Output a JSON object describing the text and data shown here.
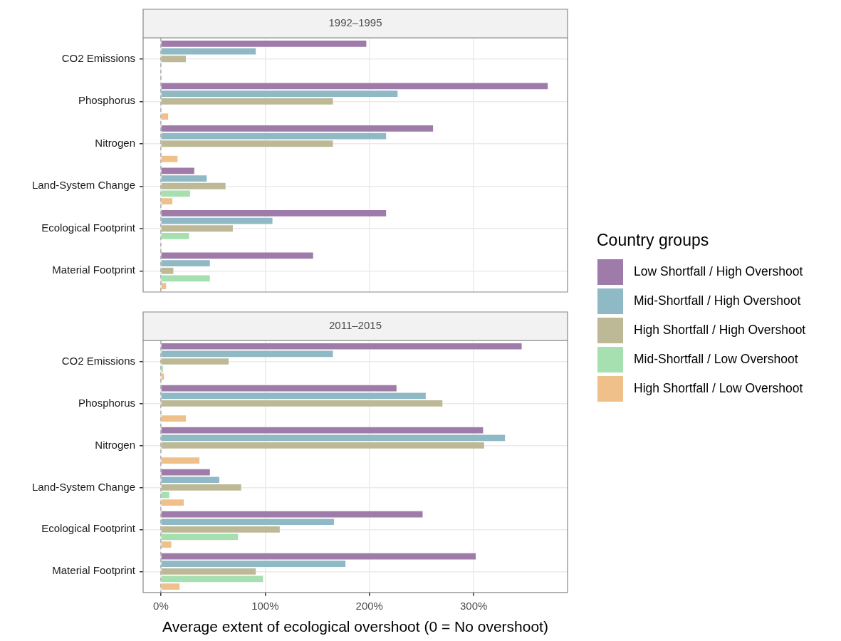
{
  "chart_data": [
    {
      "type": "bar",
      "orientation": "horizontal",
      "title": "1992–1995",
      "categories": [
        "CO2 Emissions",
        "Phosphorus",
        "Nitrogen",
        "Land-System Change",
        "Ecological Footprint",
        "Material Footprint"
      ],
      "series": [
        {
          "name": "Low Shortfall / High Overshoot",
          "color": "#9e7ba8",
          "values": [
            197,
            371,
            261,
            32,
            216,
            146
          ]
        },
        {
          "name": "Mid-Shortfall / High Overshoot",
          "color": "#8fb9c4",
          "values": [
            91,
            227,
            216,
            44,
            107,
            47
          ]
        },
        {
          "name": "High Shortfall / High Overshoot",
          "color": "#bdb996",
          "values": [
            24,
            165,
            165,
            62,
            69,
            12
          ]
        },
        {
          "name": "Mid-Shortfall / Low Overshoot",
          "color": "#a6e0b0",
          "values": [
            null,
            null,
            null,
            28,
            27,
            47
          ]
        },
        {
          "name": "High Shortfall / Low Overshoot",
          "color": "#f0c08a",
          "values": [
            null,
            7,
            16,
            11,
            null,
            5
          ]
        }
      ],
      "xlim": [
        -17,
        390
      ],
      "xticks": [
        {
          "value": 0,
          "label": null
        },
        {
          "value": 100,
          "label": null
        },
        {
          "value": 200,
          "label": null
        },
        {
          "value": 300,
          "label": null
        }
      ],
      "ref_lines": [
        {
          "axis": "x",
          "value": 0,
          "color": "#aaaaaa",
          "line_style": "dashed"
        }
      ],
      "grid": true,
      "legend": "right",
      "legend_title": "Country groups",
      "tick_labels": "y"
    },
    {
      "type": "bar",
      "orientation": "horizontal",
      "title": "2011–2015",
      "xlabel": "Average extent of ecological overshoot (0 = No overshoot)",
      "categories": [
        "CO2 Emissions",
        "Phosphorus",
        "Nitrogen",
        "Land-System Change",
        "Ecological Footprint",
        "Material Footprint"
      ],
      "series": [
        {
          "color": "#9e7ba8",
          "values": [
            346,
            226,
            309,
            47,
            251,
            302
          ]
        },
        {
          "color": "#8fb9c4",
          "values": [
            165,
            254,
            330,
            56,
            166,
            177
          ]
        },
        {
          "color": "#bdb996",
          "values": [
            65,
            270,
            310,
            77,
            114,
            91
          ]
        },
        {
          "color": "#a6e0b0",
          "values": [
            2,
            null,
            null,
            8,
            74,
            98
          ]
        },
        {
          "color": "#f0c08a",
          "values": [
            3,
            24,
            37,
            22,
            10,
            18
          ]
        }
      ],
      "xlim": [
        -17,
        390
      ],
      "xticks": [
        {
          "value": 0,
          "label": "0%"
        },
        {
          "value": 100,
          "label": "100%"
        },
        {
          "value": 200,
          "label": "200%"
        },
        {
          "value": 300,
          "label": "300%"
        }
      ],
      "ref_lines": [
        {
          "axis": "x",
          "value": 0,
          "color": "#aaaaaa",
          "line_style": "dashed"
        }
      ],
      "grid": true
    }
  ]
}
